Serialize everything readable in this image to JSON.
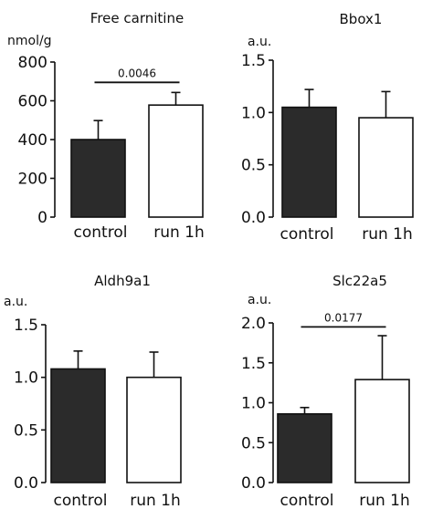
{
  "chart_data": [
    {
      "type": "bar",
      "title": "Free carnitine",
      "unit": "nmol/g",
      "categories": [
        "control",
        "run 1h"
      ],
      "values": [
        400,
        578
      ],
      "errors": [
        98,
        65
      ],
      "ylim": [
        0,
        800
      ],
      "yticks": [
        0,
        200,
        400,
        600,
        800
      ],
      "ytick_labels": [
        "0",
        "200",
        "400",
        "600",
        "800"
      ],
      "colors": [
        "#2b2b2b",
        "#ffffff"
      ],
      "annotation": {
        "text": "0.0046",
        "y": 695
      }
    },
    {
      "type": "bar",
      "title": "Bbox1",
      "unit": "a.u.",
      "categories": [
        "control",
        "run 1h"
      ],
      "values": [
        1.05,
        0.95
      ],
      "errors": [
        0.17,
        0.25
      ],
      "ylim": [
        0,
        1.5
      ],
      "yticks": [
        0,
        0.5,
        1.0,
        1.5
      ],
      "ytick_labels": [
        "0.0",
        "0.5",
        "1.0",
        "1.5"
      ],
      "colors": [
        "#2b2b2b",
        "#ffffff"
      ]
    },
    {
      "type": "bar",
      "title": "Aldh9a1",
      "unit": "a.u.",
      "categories": [
        "control",
        "run 1h"
      ],
      "values": [
        1.08,
        1.0
      ],
      "errors": [
        0.17,
        0.24
      ],
      "ylim": [
        0,
        1.5
      ],
      "yticks": [
        0,
        0.5,
        1.0,
        1.5
      ],
      "ytick_labels": [
        "0.0",
        "0.5",
        "1.0",
        "1.5"
      ],
      "colors": [
        "#2b2b2b",
        "#ffffff"
      ]
    },
    {
      "type": "bar",
      "title": "Slc22a5",
      "unit": "a.u.",
      "categories": [
        "control",
        "run 1h"
      ],
      "values": [
        0.86,
        1.29
      ],
      "errors": [
        0.08,
        0.55
      ],
      "ylim": [
        0,
        2.0
      ],
      "yticks": [
        0,
        0.5,
        1.0,
        1.5,
        2.0
      ],
      "ytick_labels": [
        "0.0",
        "0.5",
        "1.0",
        "1.5",
        "2.0"
      ],
      "colors": [
        "#2b2b2b",
        "#ffffff"
      ],
      "annotation": {
        "text": "0.0177",
        "y": 1.95
      }
    }
  ]
}
